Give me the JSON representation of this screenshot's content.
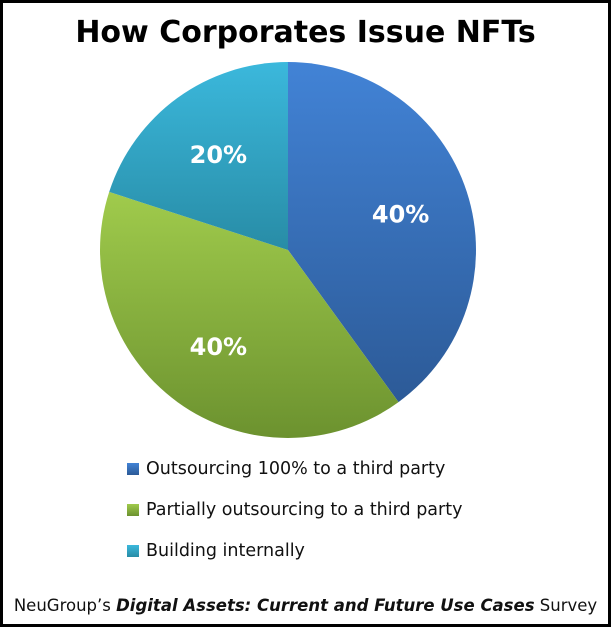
{
  "chart_data": {
    "type": "pie",
    "title": "How Corporates Issue NFTs",
    "slices": [
      {
        "label": "Outsourcing 100% to a third party",
        "value": 40,
        "data_label": "40%",
        "color_light": "#4283d6",
        "color_dark": "#2c5a97"
      },
      {
        "label": "Partially outsourcing to a third party",
        "value": 40,
        "data_label": "40%",
        "color_light": "#a0cb4c",
        "color_dark": "#6c922f"
      },
      {
        "label": "Building internally",
        "value": 20,
        "data_label": "20%",
        "color_light": "#3bb8dc",
        "color_dark": "#288ca6"
      }
    ],
    "start_angle_deg": 0,
    "direction": "clockwise",
    "legend_position": "bottom"
  },
  "footer": {
    "prefix": "NeuGroup’s ",
    "survey_name": "Digital Assets: Current and Future Use Cases",
    "suffix": " Survey"
  }
}
